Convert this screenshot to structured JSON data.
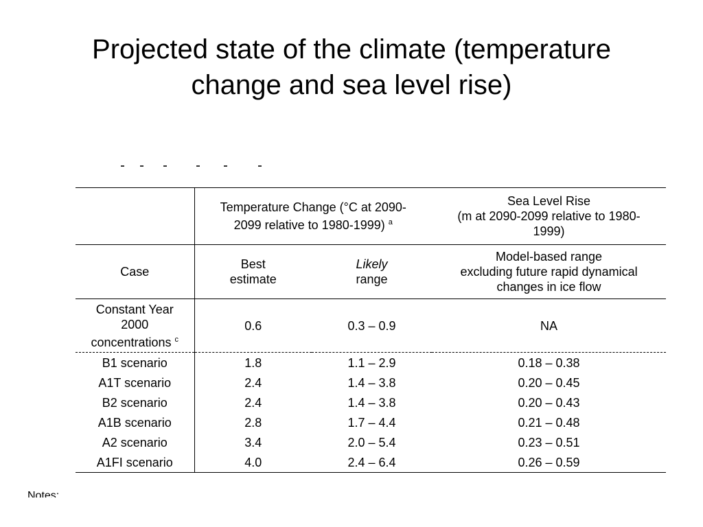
{
  "slide": {
    "title_line1": "Projected state of the climate (temperature",
    "title_line2": "change and sea level rise)"
  },
  "table": {
    "header": {
      "temp_change_line1": "Temperature Change (°C at 2090-",
      "temp_change_line2": "2099 relative to 1980-1999)",
      "temp_change_note": "a",
      "sea_level_line1": "Sea Level Rise",
      "sea_level_line2": "(m at 2090-2099 relative to 1980-",
      "sea_level_line3": "1999)",
      "case": "Case",
      "best_line1": "Best",
      "best_line2": "estimate",
      "likely_line1": "Likely",
      "likely_line2": "range",
      "model_line1": "Model-based range",
      "model_line2": "excluding future rapid dynamical",
      "model_line3": "changes in ice flow"
    },
    "constant": {
      "case_line1": "Constant Year",
      "case_line2": "2000",
      "case_line3": "concentrations",
      "case_note": "c",
      "best": "0.6",
      "likely": "0.3 – 0.9",
      "sea": "NA"
    },
    "rows": [
      {
        "case": "B1 scenario",
        "best": "1.8",
        "likely": "1.1 – 2.9",
        "sea": "0.18 – 0.38"
      },
      {
        "case": "A1T scenario",
        "best": "2.4",
        "likely": "1.4 – 3.8",
        "sea": "0.20 – 0.45"
      },
      {
        "case": "B2 scenario",
        "best": "2.4",
        "likely": "1.4 – 3.8",
        "sea": "0.20 – 0.43"
      },
      {
        "case": "A1B scenario",
        "best": "2.8",
        "likely": "1.7 – 4.4",
        "sea": "0.21 – 0.48"
      },
      {
        "case": "A2 scenario",
        "best": "3.4",
        "likely": "2.0 – 5.4",
        "sea": "0.23 – 0.51"
      },
      {
        "case": "A1FI scenario",
        "best": "4.0",
        "likely": "2.4 – 6.4",
        "sea": "0.26 – 0.59"
      }
    ]
  },
  "notes_label": "Notes:"
}
